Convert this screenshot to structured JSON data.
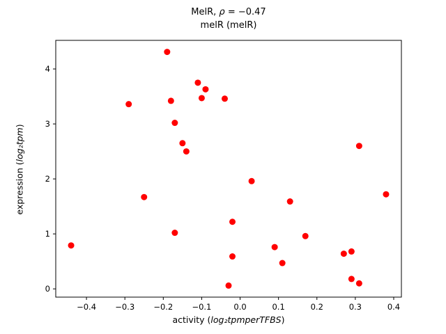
{
  "figure": {
    "title_prefix": "MelR, ",
    "title_rho": "ρ",
    "title_rest": " = −0.47",
    "title_line2": "melR (melR)",
    "xlabel_prefix": "activity (",
    "xlabel_math": "log₂tpmperTFBS",
    "xlabel_suffix": ")",
    "ylabel_prefix": "expression (",
    "ylabel_math": "log₂tpm",
    "ylabel_suffix": ")",
    "marker_color": "#ff0000",
    "axis_color": "#000000",
    "background_color": "#ffffff"
  },
  "chart_data": {
    "type": "scatter",
    "title": "MelR, ρ = −0.47",
    "subtitle": "melR (melR)",
    "xlabel": "activity (log2 tpm per TFBS)",
    "ylabel": "expression (log2 tpm)",
    "legend": "none",
    "grid": false,
    "xlim": [
      -0.48,
      0.42
    ],
    "ylim": [
      -0.15,
      4.52
    ],
    "xticks": [
      -0.4,
      -0.3,
      -0.2,
      -0.1,
      0.0,
      0.1,
      0.2,
      0.3,
      0.4
    ],
    "yticks": [
      0,
      1,
      2,
      3,
      4
    ],
    "points": [
      [
        -0.44,
        0.79
      ],
      [
        -0.29,
        3.36
      ],
      [
        -0.25,
        1.67
      ],
      [
        -0.19,
        4.31
      ],
      [
        -0.18,
        3.42
      ],
      [
        -0.17,
        3.02
      ],
      [
        -0.17,
        1.02
      ],
      [
        -0.15,
        2.65
      ],
      [
        -0.14,
        2.5
      ],
      [
        -0.11,
        3.75
      ],
      [
        -0.1,
        3.47
      ],
      [
        -0.09,
        3.63
      ],
      [
        -0.04,
        3.46
      ],
      [
        -0.03,
        0.06
      ],
      [
        -0.02,
        0.59
      ],
      [
        -0.02,
        1.22
      ],
      [
        0.03,
        1.96
      ],
      [
        0.09,
        0.76
      ],
      [
        0.11,
        0.47
      ],
      [
        0.13,
        1.59
      ],
      [
        0.17,
        0.96
      ],
      [
        0.27,
        0.64
      ],
      [
        0.29,
        0.68
      ],
      [
        0.29,
        0.18
      ],
      [
        0.31,
        2.6
      ],
      [
        0.31,
        0.1
      ],
      [
        0.38,
        1.72
      ]
    ]
  }
}
